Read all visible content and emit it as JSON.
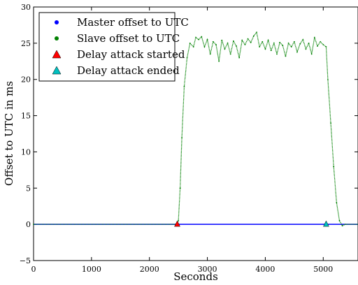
{
  "chart_data": {
    "type": "scatter",
    "xlabel": "Seconds",
    "ylabel": "Offset to UTC in ms",
    "xlim": [
      0,
      5600
    ],
    "ylim": [
      -5,
      30
    ],
    "x_ticks": [
      "0",
      "1000",
      "2000",
      "3000",
      "4000",
      "5000"
    ],
    "y_ticks": [
      "−5",
      "0",
      "5",
      "10",
      "15",
      "20",
      "25",
      "30"
    ],
    "legend_position": "top-left",
    "series": [
      {
        "name": "Master offset to UTC",
        "color": "#0000ff",
        "marker": "dot",
        "points": [
          [
            0,
            0
          ],
          [
            5600,
            0
          ]
        ]
      },
      {
        "name": "Slave offset to UTC",
        "color": "#008000",
        "marker": "dot",
        "points": [
          [
            0,
            0
          ],
          [
            2480,
            0
          ],
          [
            2500,
            0.5
          ],
          [
            2530,
            5
          ],
          [
            2560,
            12
          ],
          [
            2600,
            19
          ],
          [
            2650,
            23
          ],
          [
            2700,
            25
          ],
          [
            2760,
            24.5
          ],
          [
            2800,
            25.8
          ],
          [
            2850,
            25.5
          ],
          [
            2900,
            25.9
          ],
          [
            2950,
            24.5
          ],
          [
            3000,
            25.5
          ],
          [
            3050,
            23.5
          ],
          [
            3100,
            25.2
          ],
          [
            3150,
            24.8
          ],
          [
            3200,
            22.5
          ],
          [
            3250,
            25.4
          ],
          [
            3300,
            24.2
          ],
          [
            3350,
            25
          ],
          [
            3400,
            23.5
          ],
          [
            3450,
            25.3
          ],
          [
            3500,
            24.6
          ],
          [
            3550,
            23
          ],
          [
            3600,
            25.4
          ],
          [
            3650,
            24.8
          ],
          [
            3700,
            25.6
          ],
          [
            3750,
            25.1
          ],
          [
            3800,
            26.0
          ],
          [
            3850,
            26.5
          ],
          [
            3900,
            24.5
          ],
          [
            3950,
            25.2
          ],
          [
            4000,
            24.2
          ],
          [
            4050,
            25.4
          ],
          [
            4100,
            24.0
          ],
          [
            4150,
            25.0
          ],
          [
            4200,
            23.5
          ],
          [
            4250,
            25.1
          ],
          [
            4300,
            24.7
          ],
          [
            4350,
            23.2
          ],
          [
            4400,
            25.0
          ],
          [
            4450,
            24.5
          ],
          [
            4500,
            25.2
          ],
          [
            4550,
            23.8
          ],
          [
            4600,
            24.9
          ],
          [
            4650,
            25.5
          ],
          [
            4700,
            24.2
          ],
          [
            4750,
            25.0
          ],
          [
            4800,
            23.5
          ],
          [
            4850,
            25.8
          ],
          [
            4900,
            24.6
          ],
          [
            4950,
            25.2
          ],
          [
            5000,
            24.8
          ],
          [
            5050,
            24.5
          ],
          [
            5080,
            20
          ],
          [
            5130,
            14
          ],
          [
            5180,
            8
          ],
          [
            5230,
            3
          ],
          [
            5280,
            0.5
          ],
          [
            5330,
            -0.2
          ],
          [
            5380,
            0
          ],
          [
            5600,
            0
          ]
        ]
      },
      {
        "name": "Delay attack started",
        "color": "#ff0000",
        "marker": "triangle",
        "points": [
          [
            2480,
            0
          ]
        ]
      },
      {
        "name": "Delay attack ended",
        "color": "#00bfbf",
        "marker": "triangle",
        "points": [
          [
            5050,
            0
          ]
        ]
      }
    ]
  }
}
